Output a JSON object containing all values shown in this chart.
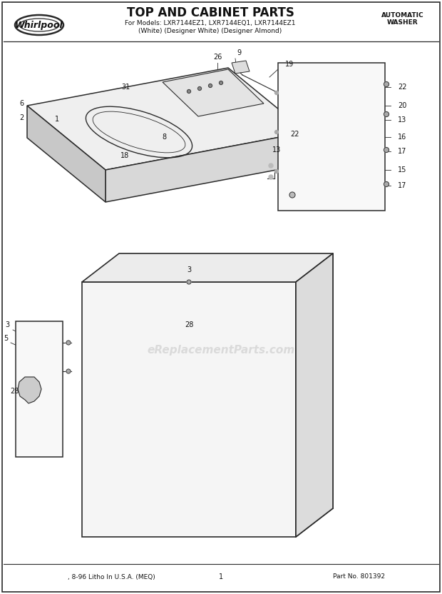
{
  "title": "TOP AND CABINET PARTS",
  "subtitle_line1": "For Models: LXR7144EZ1, LXR7144EQ1, LXR7144EZ1",
  "subtitle_line2": "(White) (Designer White) (Designer Almond)",
  "brand": "Whirlpool",
  "top_right_line1": "AUTOMATIC",
  "top_right_line2": "WASHER",
  "bottom_left_text": ", 8-96 Litho In U.S.A. (MEQ)",
  "bottom_center_text": "1",
  "bottom_right_text": "Part No. 801392",
  "watermark": "eReplacementParts.com",
  "bg_color": "#ffffff",
  "line_color": "#2a2a2a",
  "text_color": "#111111"
}
